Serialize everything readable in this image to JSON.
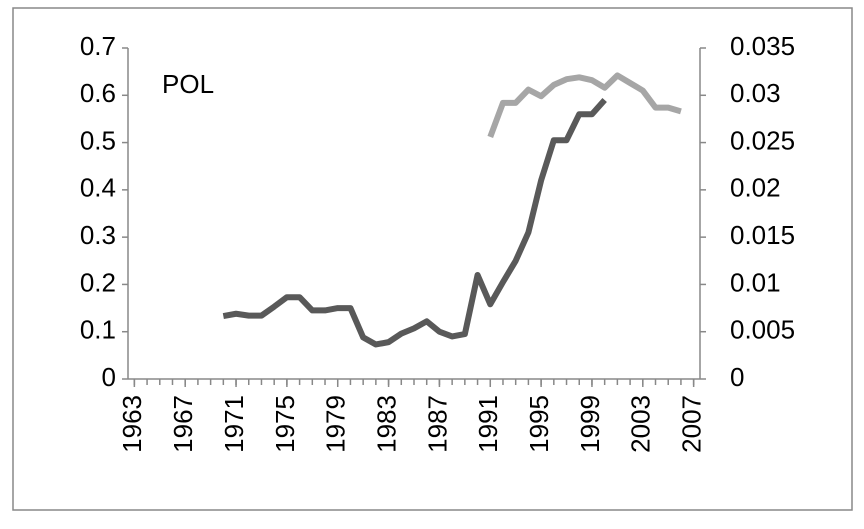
{
  "chart_data": {
    "type": "line",
    "annotation": "POL",
    "x": [
      1970,
      1971,
      1972,
      1973,
      1974,
      1975,
      1976,
      1977,
      1978,
      1979,
      1980,
      1981,
      1982,
      1983,
      1984,
      1985,
      1986,
      1987,
      1988,
      1989,
      1990,
      1991,
      1992,
      1993,
      1994,
      1995,
      1996,
      1997,
      1998,
      1999,
      2000,
      2001,
      2002,
      2003,
      2004,
      2005,
      2006
    ],
    "series": [
      {
        "color": "#595959",
        "axis": "y",
        "values": [
          0.133,
          0.138,
          0.134,
          0.134,
          0.153,
          0.173,
          0.173,
          0.145,
          0.145,
          0.15,
          0.15,
          0.088,
          0.073,
          0.078,
          0.096,
          0.107,
          0.122,
          0.1,
          0.09,
          0.095,
          0.22,
          0.158,
          0.205,
          0.25,
          0.31,
          0.42,
          0.505,
          0.505,
          0.56,
          0.56,
          0.59,
          null,
          null,
          null,
          null,
          null,
          null
        ]
      },
      {
        "color": "#a6a6a6",
        "axis": "y2",
        "values": [
          null,
          null,
          null,
          null,
          null,
          null,
          null,
          null,
          null,
          null,
          null,
          null,
          null,
          null,
          null,
          null,
          null,
          null,
          null,
          null,
          null,
          0.0256,
          0.0292,
          0.0292,
          0.0306,
          0.0299,
          0.0311,
          0.0317,
          0.0319,
          0.0316,
          0.0308,
          0.0321,
          0.0313,
          0.0305,
          0.0287,
          0.0287,
          0.0283
        ]
      }
    ],
    "xlim": [
      1962.5,
      2007.5
    ],
    "xticks": [
      1963,
      1967,
      1971,
      1975,
      1979,
      1983,
      1987,
      1991,
      1995,
      1999,
      2003,
      2007
    ],
    "ylim": [
      0,
      0.7
    ],
    "yticks": [
      0,
      0.1,
      0.2,
      0.3,
      0.4,
      0.5,
      0.6,
      0.7
    ],
    "y2lim": [
      0,
      0.035
    ],
    "y2ticks": [
      0,
      0.005,
      0.01,
      0.015,
      0.02,
      0.025,
      0.03,
      0.035
    ]
  }
}
